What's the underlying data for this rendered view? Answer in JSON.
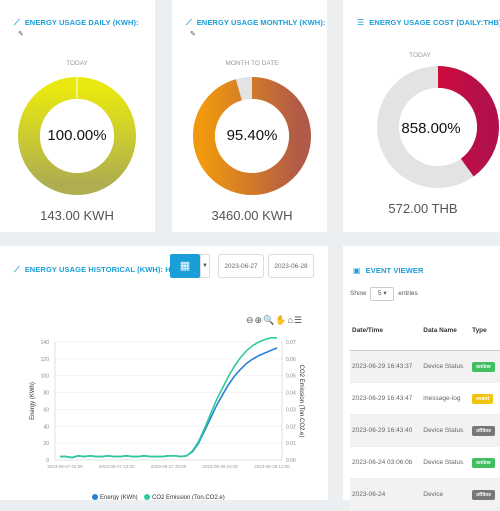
{
  "daily": {
    "title": "ENERGY USAGE DAILY (KWH):",
    "label": "TODAY",
    "percent": "100.00%",
    "value": "143.00 KWH",
    "fraction": 1.0
  },
  "monthly": {
    "title": "ENERGY USAGE MONTHLY (KWH):",
    "label": "MONTH TO DATE",
    "percent": "95.40%",
    "value": "3460.00 KWH",
    "fraction": 0.954
  },
  "cost": {
    "title": "ENERGY USAGE COST (DAILY:THB):",
    "label": "TODAY",
    "percent": "858.00%",
    "value": "572.00 THB",
    "fraction": 0.4
  },
  "historical": {
    "title": "ENERGY USAGE HISTORICAL (KWH): HOUR",
    "date_from": "2023-06-27",
    "date_to": "2023-06-28",
    "tools": "⊖⊕🔍✋⌂☰"
  },
  "events": {
    "title": "EVENT VIEWER",
    "show_label": "Show",
    "show_value": "5",
    "entries_label": "entries",
    "columns": [
      "Date/Time",
      "Data Name",
      "Type"
    ],
    "rows": [
      {
        "date": "2023-06-29 16:43:37",
        "name": "Device Status",
        "type": "online",
        "color": "#3fbf5f"
      },
      {
        "date": "2023-06-29 16:43:47",
        "name": "message-log",
        "type": "event",
        "color": "#f1c40f"
      },
      {
        "date": "2023-06-29 16:43:40",
        "name": "Device Status",
        "type": "offline",
        "color": "#777777"
      },
      {
        "date": "2023-06-24 03:06:0b",
        "name": "Device Status",
        "type": "online",
        "color": "#3fbf5f"
      },
      {
        "date": "2023-06-24",
        "name": "Device",
        "type": "offline",
        "color": "#777777"
      }
    ]
  },
  "chart_data": {
    "type": "line",
    "ylabel": "Energy (KWh)",
    "y2label": "CO2 Emission (Ton.CO2.e)",
    "yticks": [
      "0",
      "20",
      "40",
      "60",
      "80",
      "100",
      "120",
      "140"
    ],
    "y2ticks": [
      "0.00",
      "0.01",
      "0.02",
      "0.03",
      "0.04",
      "0.05",
      "0.06",
      "0.07"
    ],
    "xticks": [
      "2023-06-27 04:00",
      "2023-06-27 12:00",
      "2023-06-27 20:00",
      "2023-06-28 04:00",
      "2023-06-28 12:00"
    ],
    "ylim": [
      0,
      140
    ],
    "series": [
      {
        "name": "Energy (KWh)",
        "color": "#2b7fd6",
        "x": [
          0,
          1,
          2,
          3,
          4,
          5,
          6,
          7,
          8,
          9,
          10,
          11,
          12,
          13,
          14,
          15,
          16,
          17,
          18,
          19,
          20,
          21,
          22,
          23,
          24,
          25,
          26,
          27,
          28,
          29,
          30,
          31,
          32,
          33,
          34,
          35,
          36
        ],
        "values": [
          4,
          4,
          3,
          5,
          4,
          5,
          4,
          4,
          5,
          4,
          4,
          5,
          4,
          4,
          5,
          4,
          4,
          4,
          5,
          5,
          4,
          5,
          10,
          20,
          35,
          50,
          65,
          78,
          90,
          100,
          108,
          115,
          120,
          124,
          127,
          130,
          133
        ]
      },
      {
        "name": "CO2 Emission (Ton.CO2.e)",
        "color": "#2ecc9a",
        "x": [
          0,
          1,
          2,
          3,
          4,
          5,
          6,
          7,
          8,
          9,
          10,
          11,
          12,
          13,
          14,
          15,
          16,
          17,
          18,
          19,
          20,
          21,
          22,
          23,
          24,
          25,
          26,
          27,
          28,
          29,
          30,
          31,
          32,
          33,
          34,
          35,
          36
        ],
        "values": [
          4,
          4,
          3,
          5,
          4,
          5,
          4,
          4,
          5,
          4,
          4,
          5,
          4,
          4,
          5,
          4,
          4,
          4,
          5,
          5,
          4,
          5,
          11,
          22,
          38,
          55,
          72,
          86,
          100,
          112,
          122,
          130,
          136,
          140,
          143,
          145,
          145
        ]
      }
    ]
  }
}
